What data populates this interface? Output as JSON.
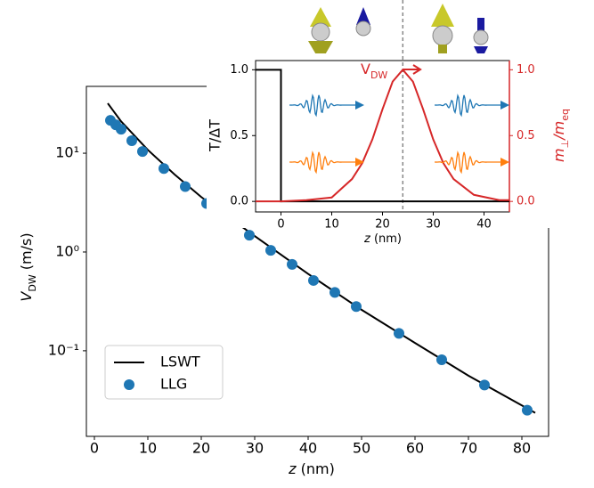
{
  "chart_data": [
    {
      "type": "line",
      "x_label": {
        "symbol": "z",
        "unit": "(nm)"
      },
      "y_label": {
        "symbol": "V",
        "sub": "DW",
        "unit": "(m/s)"
      },
      "xlim": [
        -1.5,
        85
      ],
      "xticks": [
        0,
        10,
        20,
        30,
        40,
        50,
        60,
        70,
        80
      ],
      "ylim": [
        0.0136,
        47.5
      ],
      "log_y": true,
      "yticks": [
        {
          "value": 10,
          "label": "10¹"
        },
        {
          "value": 1,
          "label": "10⁰"
        },
        {
          "value": 0.1,
          "label": "10⁻¹"
        }
      ],
      "legend": "lower left",
      "series": [
        {
          "name": "LSWT",
          "type": "line",
          "color": "#000000",
          "x": [
            2.5,
            5,
            10,
            15,
            20,
            30,
            40,
            50,
            60,
            70,
            82.5
          ],
          "values": [
            32,
            21,
            10.8,
            6.1,
            3.6,
            1.45,
            0.6,
            0.26,
            0.12,
            0.056,
            0.0235
          ]
        },
        {
          "name": "LLG",
          "type": "scatter",
          "color": "#1f77b4",
          "x": [
            3,
            4,
            5,
            7,
            9,
            13,
            17,
            21,
            25,
            29,
            33,
            37,
            41,
            45,
            49,
            57,
            65,
            73,
            81
          ],
          "values": [
            21.5,
            19.4,
            17.5,
            13.4,
            10.4,
            7.0,
            4.6,
            3.1,
            2.15,
            1.48,
            1.04,
            0.75,
            0.515,
            0.39,
            0.28,
            0.15,
            0.081,
            0.045,
            0.025
          ]
        }
      ]
    },
    {
      "type": "line",
      "x_label": {
        "symbol": "z",
        "unit": "(nm)"
      },
      "y_label": "T/ΔT",
      "y2_label": {
        "m1": "m",
        "sub1": "⊥",
        "m2": "/m",
        "sub2": "eq"
      },
      "annotation": {
        "symbol": "V",
        "sub": "DW"
      },
      "xlim": [
        -5,
        45
      ],
      "xticks": [
        0,
        10,
        20,
        30,
        40
      ],
      "ylim": [
        -0.08,
        1.07
      ],
      "yticks": [
        {
          "value": 0,
          "label": "0.0"
        },
        {
          "value": 0.5,
          "label": "0.5"
        },
        {
          "value": 1,
          "label": "1.0"
        }
      ],
      "y2lim": [
        -0.08,
        1.07
      ],
      "y2ticks": [
        {
          "value": 0,
          "label": "0.0"
        },
        {
          "value": 0.5,
          "label": "0.5"
        },
        {
          "value": 1,
          "label": "1.0"
        }
      ],
      "y2_color": "#d62728",
      "vline": 24,
      "vline_color": "#888888",
      "series": [
        {
          "type": "line",
          "color": "#000000",
          "x": [
            -5,
            0,
            0,
            45
          ],
          "values": [
            1,
            1,
            0,
            0
          ]
        },
        {
          "type": "line",
          "color": "#d62728",
          "axis": "y2",
          "x": [
            -5,
            0,
            5,
            10,
            14,
            16,
            18,
            20,
            22,
            24,
            26,
            28,
            30,
            32,
            34,
            38,
            43,
            45
          ],
          "values": [
            0,
            0,
            0.01,
            0.03,
            0.17,
            0.29,
            0.47,
            0.7,
            0.91,
            1,
            0.91,
            0.7,
            0.47,
            0.29,
            0.17,
            0.05,
            0.01,
            0.01
          ]
        }
      ]
    }
  ]
}
